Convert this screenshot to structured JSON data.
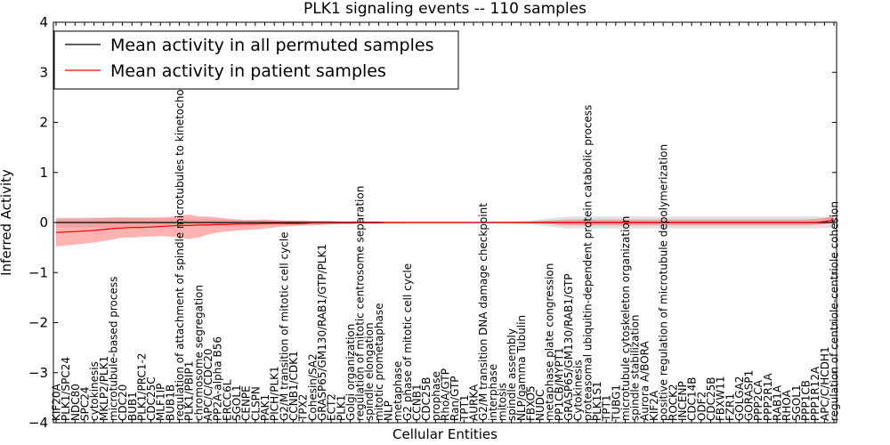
{
  "chart_data": {
    "type": "line",
    "title": "PLK1 signaling events -- 110 samples",
    "xlabel": "Cellular Entities",
    "ylabel": "Inferred Activity",
    "ylim": [
      -4,
      4
    ],
    "yticks": [
      -4,
      -3,
      -2,
      -1,
      0,
      1,
      2,
      3,
      4
    ],
    "ytick_labels": [
      "−4",
      "−3",
      "−2",
      "−1",
      "0",
      "1",
      "2",
      "3",
      "4"
    ],
    "grid": false,
    "legend_position": "top-left",
    "categories": [
      "KIF20A",
      "PLK1/SPC24",
      "NDC80",
      "SPC24",
      "cytokinesis",
      "MKLP2/PLK1",
      "microtubule-based process",
      "CDC20",
      "BUB1",
      "PLK1/PRC1-2",
      "CDC25C",
      "MLF1IP",
      "BUB1B",
      "regulation of attachment of spindle microtubules to kinetochore",
      "PLK1/PBIP1",
      "chromosome segregation",
      "APC/C/CDC20",
      "PP2A-alpha B56",
      "ERCC6L",
      "SGOL1",
      "CENPE",
      "CLSPN",
      "PAK1",
      "PICH/PLK1",
      "G2/M transition of mitotic cell cycle",
      "CCNB1/CDK1",
      "TPX2",
      "Cohesin/SA2",
      "GRASP65/GM130/RAB1/GTP/PLK1",
      "ECT2",
      "PLK1",
      "Golgi organization",
      "regulation of mitotic centrosome separation",
      "spindle elongation",
      "mitotic prometaphase",
      "NLP",
      "metaphase",
      "G2 phase of mitotic cell cycle",
      "CCNB1",
      "CDC25B",
      "prophase",
      "RhoA/GTP",
      "Ran/GTP",
      "TPT1",
      "AURKA",
      "G2/M transition DNA damage checkpoint",
      "interphase",
      "mitosis",
      "spindle assembly",
      "NLP/gamma Tubulin",
      "FBXO5",
      "NUDC",
      "metaphase plate congression",
      "PP1CB/MYPT1",
      "GRASP65/GM130/RAB1/GTP",
      "Cytokinesis",
      "proteasomal ubiquitin-dependent protein catabolic process",
      "PLK1S1",
      "TPT1",
      "TUBG1",
      "microtubule cytoskeleton organization",
      "spindle stabilization",
      "Aurora A/BORA",
      "KIF2A",
      "positive regulation of microtubule depolymerization",
      "ROCK2",
      "INCENP",
      "CDC14B",
      "ODF2",
      "CDC25B",
      "FBXW11",
      "FZR1",
      "GOLGA2",
      "GORASP1",
      "PPP2CA",
      "PPP2R1A",
      "RAB1A",
      "RHOA",
      "SGOL1",
      "PPP1CB",
      "PPP1R12A",
      "APC/C/HCDH1",
      "regulation of centriole-centriole cohesion"
    ],
    "series": [
      {
        "name": "Mean activity in all permuted samples",
        "color": "#000000",
        "values": [
          0,
          0,
          0,
          0,
          0,
          0,
          0,
          0,
          0,
          0,
          0,
          0,
          0,
          0,
          0,
          0,
          0,
          0,
          0,
          0,
          0,
          0,
          0,
          0,
          0,
          0,
          0,
          0,
          0,
          0,
          0,
          0,
          0,
          0,
          0,
          0,
          0,
          0,
          0,
          0,
          0,
          0,
          0,
          0,
          0,
          0,
          0,
          0,
          0,
          0,
          0,
          0,
          0,
          0,
          0,
          0,
          0,
          0,
          0,
          0,
          0,
          0,
          0,
          0,
          0,
          0,
          0,
          0,
          0,
          0,
          0,
          0,
          0,
          0,
          0,
          0,
          0,
          0,
          0,
          0,
          0,
          0,
          0
        ],
        "band_lower": [
          -0.1,
          -0.1,
          -0.1,
          -0.1,
          -0.1,
          -0.1,
          -0.1,
          -0.1,
          -0.09,
          -0.09,
          -0.08,
          -0.08,
          -0.08,
          -0.08,
          -0.07,
          -0.07,
          -0.07,
          -0.06,
          -0.06,
          -0.06,
          -0.05,
          -0.05,
          -0.05,
          -0.04,
          -0.04,
          -0.04,
          -0.04,
          -0.03,
          -0.03,
          -0.03,
          -0.02,
          -0.02,
          -0.02,
          -0.02,
          -0.02,
          -0.01,
          -0.01,
          -0.01,
          -0.01,
          -0.01,
          -0.01,
          -0.01,
          -0.01,
          -0.01,
          -0.01,
          -0.01,
          -0.02,
          -0.02,
          -0.02,
          -0.03,
          -0.04,
          -0.06,
          -0.08,
          -0.1,
          -0.12,
          -0.12,
          -0.12,
          -0.12,
          -0.12,
          -0.12,
          -0.12,
          -0.12,
          -0.12,
          -0.12,
          -0.12,
          -0.12,
          -0.12,
          -0.12,
          -0.12,
          -0.12,
          -0.12,
          -0.12,
          -0.12,
          -0.12,
          -0.12,
          -0.12,
          -0.12,
          -0.12,
          -0.12,
          -0.12,
          -0.12,
          -0.11,
          -0.1
        ],
        "band_upper": [
          0.1,
          0.1,
          0.1,
          0.1,
          0.1,
          0.1,
          0.1,
          0.1,
          0.09,
          0.09,
          0.08,
          0.08,
          0.08,
          0.08,
          0.07,
          0.07,
          0.07,
          0.06,
          0.06,
          0.06,
          0.05,
          0.05,
          0.05,
          0.04,
          0.04,
          0.04,
          0.04,
          0.03,
          0.03,
          0.03,
          0.02,
          0.02,
          0.02,
          0.02,
          0.02,
          0.01,
          0.01,
          0.01,
          0.01,
          0.01,
          0.01,
          0.01,
          0.01,
          0.01,
          0.01,
          0.01,
          0.02,
          0.02,
          0.02,
          0.03,
          0.04,
          0.06,
          0.08,
          0.1,
          0.12,
          0.12,
          0.12,
          0.12,
          0.12,
          0.12,
          0.12,
          0.12,
          0.12,
          0.12,
          0.12,
          0.12,
          0.12,
          0.12,
          0.12,
          0.12,
          0.12,
          0.12,
          0.12,
          0.12,
          0.12,
          0.12,
          0.12,
          0.12,
          0.12,
          0.12,
          0.12,
          0.11,
          0.1
        ]
      },
      {
        "name": "Mean activity in patient samples",
        "color": "#ff0000",
        "values": [
          -0.2,
          -0.19,
          -0.18,
          -0.17,
          -0.16,
          -0.14,
          -0.12,
          -0.11,
          -0.1,
          -0.1,
          -0.09,
          -0.08,
          -0.07,
          -0.06,
          -0.06,
          -0.05,
          -0.05,
          -0.04,
          -0.04,
          -0.03,
          -0.03,
          -0.03,
          -0.02,
          -0.02,
          -0.02,
          -0.02,
          -0.02,
          -0.01,
          -0.01,
          -0.01,
          -0.01,
          -0.01,
          -0.01,
          -0.01,
          -0.01,
          0,
          0,
          0,
          0,
          0,
          0,
          0,
          0,
          0,
          0,
          0,
          0,
          0,
          0,
          0,
          0,
          0,
          0,
          0,
          0,
          0,
          0,
          0,
          0,
          0,
          0,
          0,
          0,
          0,
          0,
          0,
          0,
          0,
          0,
          0,
          0,
          0,
          0,
          0,
          0,
          0,
          0,
          0,
          0,
          0,
          0,
          0.02,
          0.05
        ],
        "band_lower": [
          -0.48,
          -0.46,
          -0.44,
          -0.42,
          -0.4,
          -0.37,
          -0.34,
          -0.3,
          -0.3,
          -0.29,
          -0.28,
          -0.27,
          -0.28,
          -0.3,
          -0.33,
          -0.3,
          -0.24,
          -0.2,
          -0.18,
          -0.16,
          -0.15,
          -0.14,
          -0.12,
          -0.1,
          -0.08,
          -0.07,
          -0.06,
          -0.06,
          -0.05,
          -0.04,
          -0.03,
          -0.03,
          -0.02,
          -0.02,
          -0.02,
          -0.02,
          -0.02,
          -0.01,
          -0.01,
          -0.01,
          -0.01,
          -0.01,
          -0.01,
          -0.01,
          -0.01,
          -0.01,
          -0.01,
          -0.01,
          -0.01,
          -0.01,
          -0.01,
          -0.02,
          -0.03,
          -0.05,
          -0.06,
          -0.06,
          -0.06,
          -0.06,
          -0.06,
          -0.06,
          -0.06,
          -0.06,
          -0.06,
          -0.06,
          -0.06,
          -0.06,
          -0.06,
          -0.06,
          -0.06,
          -0.06,
          -0.06,
          -0.06,
          -0.06,
          -0.06,
          -0.06,
          -0.06,
          -0.06,
          -0.06,
          -0.06,
          -0.06,
          -0.05,
          -0.03,
          0
        ],
        "band_upper": [
          0.08,
          0.08,
          0.08,
          0.08,
          0.09,
          0.09,
          0.1,
          0.1,
          0.1,
          0.1,
          0.1,
          0.1,
          0.11,
          0.14,
          0.16,
          0.12,
          0.12,
          0.1,
          0.08,
          0.06,
          0.05,
          0.05,
          0.06,
          0.05,
          0.04,
          0.04,
          0.04,
          0.03,
          0.03,
          0.03,
          0.02,
          0.02,
          0.02,
          0.02,
          0.02,
          0.01,
          0.01,
          0.01,
          0.01,
          0.01,
          0.01,
          0.01,
          0.01,
          0.01,
          0.01,
          0.01,
          0.01,
          0.01,
          0.01,
          0.01,
          0.02,
          0.03,
          0.04,
          0.05,
          0.06,
          0.06,
          0.06,
          0.06,
          0.06,
          0.06,
          0.06,
          0.06,
          0.06,
          0.06,
          0.06,
          0.06,
          0.06,
          0.06,
          0.06,
          0.06,
          0.06,
          0.06,
          0.06,
          0.06,
          0.06,
          0.06,
          0.06,
          0.06,
          0.06,
          0.06,
          0.07,
          0.09,
          0.14
        ]
      }
    ]
  }
}
